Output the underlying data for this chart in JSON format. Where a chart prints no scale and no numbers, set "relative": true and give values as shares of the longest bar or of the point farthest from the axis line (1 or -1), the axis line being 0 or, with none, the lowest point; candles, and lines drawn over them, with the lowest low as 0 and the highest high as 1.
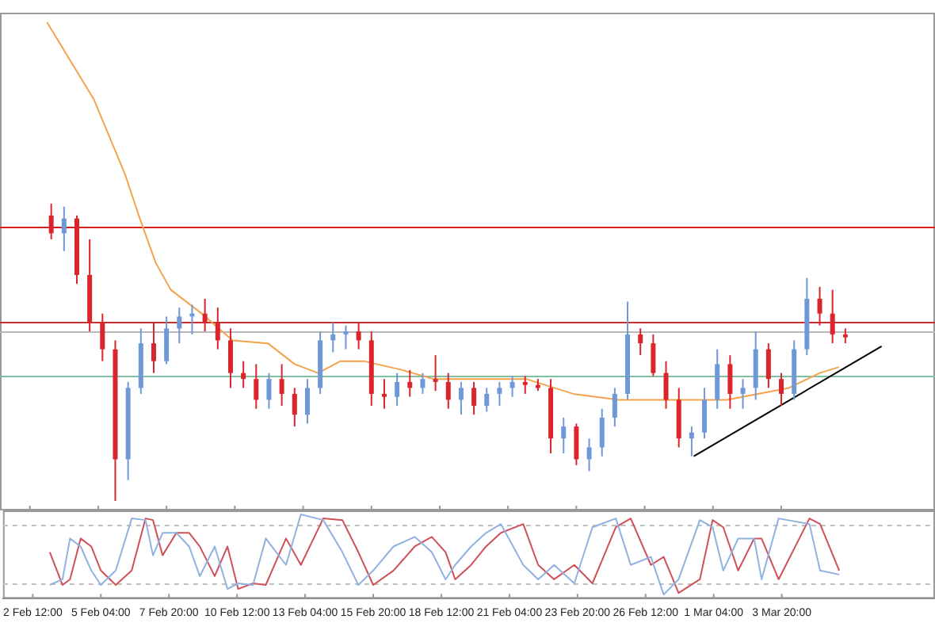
{
  "chart_data": [
    {
      "type": "candlestick",
      "relative": true,
      "xlim": [
        "--02-01T08:00",
        "--03-09T20:00"
      ],
      "tick_labels": false,
      "xticks": [
        {
          "value": "--02-02T12:00",
          "label": null
        },
        {
          "value": "--02-05T04:00",
          "label": null
        },
        {
          "value": "--02-07T20:00",
          "label": null
        },
        {
          "value": "--02-10T12:00",
          "label": null
        },
        {
          "value": "--02-13T04:00",
          "label": null
        },
        {
          "value": "--02-15T20:00",
          "label": null
        },
        {
          "value": "--02-18T12:00",
          "label": null
        },
        {
          "value": "--02-21T04:00",
          "label": null
        },
        {
          "value": "--02-23T20:00",
          "label": null
        },
        {
          "value": "--02-26T12:00",
          "label": null
        },
        {
          "value": "--03-01T04:00",
          "label": null
        },
        {
          "value": "--03-03T20:00",
          "label": null
        }
      ],
      "x": [
        "--02-03T08:00",
        "--02-03T20:00",
        "--02-04T08:00",
        "--02-04T20:00",
        "--02-05T08:00",
        "--02-05T20:00",
        "--02-06T08:00",
        "--02-06T20:00",
        "--02-07T08:00",
        "--02-07T20:00",
        "--02-08T08:00",
        "--02-08T20:00",
        "--02-09T08:00",
        "--02-09T20:00",
        "--02-10T08:00",
        "--02-10T20:00",
        "--02-11T08:00",
        "--02-11T20:00",
        "--02-12T08:00",
        "--02-12T20:00",
        "--02-13T08:00",
        "--02-13T20:00",
        "--02-14T08:00",
        "--02-14T20:00",
        "--02-15T08:00",
        "--02-15T20:00",
        "--02-16T08:00",
        "--02-16T20:00",
        "--02-17T08:00",
        "--02-17T20:00",
        "--02-18T08:00",
        "--02-18T20:00",
        "--02-19T08:00",
        "--02-19T20:00",
        "--02-20T08:00",
        "--02-20T20:00",
        "--02-21T08:00",
        "--02-21T20:00",
        "--02-22T08:00",
        "--02-22T20:00",
        "--02-23T08:00",
        "--02-23T20:00",
        "--02-24T08:00",
        "--02-24T20:00",
        "--02-25T08:00",
        "--02-25T20:00",
        "--02-26T08:00",
        "--02-26T20:00",
        "--02-27T08:00",
        "--02-27T20:00",
        "--02-28T08:00",
        "--02-28T20:00",
        "--03-01T08:00",
        "--03-01T20:00",
        "--03-02T08:00",
        "--03-02T20:00",
        "--03-03T08:00",
        "--03-03T20:00",
        "--03-04T08:00",
        "--03-04T20:00",
        "--03-05T08:00",
        "--03-05T20:00",
        "--03-06T08:00"
      ],
      "ohlc": [
        [
          0.96,
          1,
          0.88,
          0.9
        ],
        [
          0.9,
          0.99,
          0.84,
          0.95
        ],
        [
          0.95,
          0.96,
          0.73,
          0.76
        ],
        [
          0.76,
          0.88,
          0.57,
          0.6
        ],
        [
          0.6,
          0.63,
          0.47,
          0.51
        ],
        [
          0.51,
          0.54,
          0,
          0.14
        ],
        [
          0.14,
          0.4,
          0.07,
          0.38
        ],
        [
          0.38,
          0.58,
          0.36,
          0.53
        ],
        [
          0.53,
          0.6,
          0.43,
          0.47
        ],
        [
          0.47,
          0.62,
          0.46,
          0.58
        ],
        [
          0.58,
          0.65,
          0.53,
          0.62
        ],
        [
          0.62,
          0.66,
          0.56,
          0.63
        ],
        [
          0.63,
          0.68,
          0.57,
          0.6
        ],
        [
          0.6,
          0.65,
          0.51,
          0.54
        ],
        [
          0.54,
          0.58,
          0.38,
          0.43
        ],
        [
          0.43,
          0.47,
          0.38,
          0.41
        ],
        [
          0.41,
          0.46,
          0.31,
          0.34
        ],
        [
          0.34,
          0.43,
          0.31,
          0.41
        ],
        [
          0.41,
          0.46,
          0.32,
          0.36
        ],
        [
          0.36,
          0.38,
          0.25,
          0.29
        ],
        [
          0.29,
          0.41,
          0.26,
          0.38
        ],
        [
          0.38,
          0.57,
          0.36,
          0.54
        ],
        [
          0.54,
          0.6,
          0.5,
          0.56
        ],
        [
          0.56,
          0.59,
          0.51,
          0.57
        ],
        [
          0.57,
          0.6,
          0.51,
          0.54
        ],
        [
          0.54,
          0.57,
          0.32,
          0.36
        ],
        [
          0.36,
          0.41,
          0.31,
          0.35
        ],
        [
          0.35,
          0.43,
          0.32,
          0.4
        ],
        [
          0.4,
          0.44,
          0.35,
          0.38
        ],
        [
          0.38,
          0.43,
          0.36,
          0.41
        ],
        [
          0.41,
          0.49,
          0.37,
          0.4
        ],
        [
          0.4,
          0.43,
          0.31,
          0.34
        ],
        [
          0.34,
          0.4,
          0.29,
          0.38
        ],
        [
          0.38,
          0.4,
          0.29,
          0.32
        ],
        [
          0.32,
          0.38,
          0.3,
          0.36
        ],
        [
          0.36,
          0.4,
          0.32,
          0.38
        ],
        [
          0.38,
          0.42,
          0.35,
          0.4
        ],
        [
          0.4,
          0.42,
          0.36,
          0.39
        ],
        [
          0.39,
          0.41,
          0.37,
          0.38
        ],
        [
          0.38,
          0.41,
          0.16,
          0.21
        ],
        [
          0.21,
          0.28,
          0.16,
          0.25
        ],
        [
          0.25,
          0.26,
          0.12,
          0.14
        ],
        [
          0.14,
          0.21,
          0.1,
          0.18
        ],
        [
          0.18,
          0.31,
          0.15,
          0.28
        ],
        [
          0.28,
          0.38,
          0.25,
          0.36
        ],
        [
          0.36,
          0.67,
          0.34,
          0.56
        ],
        [
          0.56,
          0.58,
          0.49,
          0.53
        ],
        [
          0.53,
          0.56,
          0.42,
          0.43
        ],
        [
          0.43,
          0.47,
          0.31,
          0.34
        ],
        [
          0.34,
          0.38,
          0.18,
          0.21
        ],
        [
          0.21,
          0.25,
          0.15,
          0.23
        ],
        [
          0.23,
          0.38,
          0.21,
          0.34
        ],
        [
          0.34,
          0.51,
          0.31,
          0.46
        ],
        [
          0.46,
          0.49,
          0.31,
          0.36
        ],
        [
          0.36,
          0.41,
          0.31,
          0.38
        ],
        [
          0.38,
          0.57,
          0.34,
          0.51
        ],
        [
          0.51,
          0.53,
          0.38,
          0.41
        ],
        [
          0.41,
          0.43,
          0.32,
          0.36
        ],
        [
          0.36,
          0.54,
          0.34,
          0.51
        ],
        [
          0.51,
          0.75,
          0.49,
          0.68
        ],
        [
          0.68,
          0.72,
          0.59,
          0.63
        ],
        [
          0.63,
          0.71,
          0.53,
          0.56
        ],
        [
          0.56,
          0.58,
          0.53,
          0.55
        ]
      ],
      "series": [
        {
          "type": "line",
          "color": "#f4a34c",
          "x": [
            "--02-03T04:00",
            "--02-05T00:00",
            "--02-06T05:00",
            "--02-06T19:00",
            "--02-07T10:00",
            "--02-08T00:00",
            "--02-09T05:00",
            "--02-10T10:00",
            "--02-11T19:00",
            "--02-12T20:00",
            "--02-13T18:00",
            "--02-14T15:00",
            "--02-15T13:00",
            "--02-17T01:00",
            "--02-18T06:00",
            "--02-20T02:00",
            "--02-21T21:00",
            "--02-23T17:00",
            "--02-25T12:00",
            "--02-27T07:00",
            "--03-01T17:00",
            "--03-04T03:00",
            "--03-05T08:00",
            "--03-06T02:00"
          ],
          "values": [
            1.61,
            1.35,
            1.1,
            0.95,
            0.8,
            0.71,
            0.63,
            0.54,
            0.53,
            0.46,
            0.43,
            0.47,
            0.47,
            0.44,
            0.41,
            0.41,
            0.41,
            0.36,
            0.34,
            0.34,
            0.34,
            0.38,
            0.43,
            0.45
          ]
        },
        {
          "type": "line",
          "color": "#000000",
          "x": [
            "--02-28T10:00",
            "--03-07T18:00"
          ],
          "values": [
            0.15,
            0.52
          ]
        }
      ],
      "ref_lines": [
        {
          "axis": "y",
          "value": 0.92,
          "color": "#d62020"
        },
        {
          "axis": "y",
          "value": 0.6,
          "color": "#c83030"
        },
        {
          "axis": "y",
          "value": 0.57,
          "color": "#b8b8b8"
        },
        {
          "axis": "y",
          "value": 0.42,
          "color": "#80c0a0"
        }
      ]
    },
    {
      "type": "line",
      "relative": true,
      "xlim": [
        "--02-01T08:00",
        "--03-09T20:00"
      ],
      "tick_labels": "x",
      "xticks": [
        {
          "value": "--02-02T12:00",
          "label": "2 Feb 12:00"
        },
        {
          "value": "--02-05T04:00",
          "label": "5 Feb 04:00"
        },
        {
          "value": "--02-07T20:00",
          "label": "7 Feb 20:00"
        },
        {
          "value": "--02-10T12:00",
          "label": "10 Feb 12:00"
        },
        {
          "value": "--02-13T04:00",
          "label": "13 Feb 04:00"
        },
        {
          "value": "--02-15T20:00",
          "label": "15 Feb 20:00"
        },
        {
          "value": "--02-18T12:00",
          "label": "18 Feb 12:00"
        },
        {
          "value": "--02-21T04:00",
          "label": "21 Feb 04:00"
        },
        {
          "value": "--02-23T20:00",
          "label": "23 Feb 20:00"
        },
        {
          "value": "--02-26T12:00",
          "label": "26 Feb 12:00"
        },
        {
          "value": "--03-01T04:00",
          "label": "1 Mar 04:00"
        },
        {
          "value": "--03-03T20:00",
          "label": "3 Mar 20:00"
        }
      ],
      "x": [
        "--02-03T04:00",
        "--02-03T16:00",
        "--02-03T23:00",
        "--02-04T09:00",
        "--02-04T19:00",
        "--02-05T04:00",
        "--02-05T18:00",
        "--02-06T09:00",
        "--02-06T22:00",
        "--02-07T05:00",
        "--02-07T14:00",
        "--02-08T03:00",
        "--02-08T15:00",
        "--02-09T01:00",
        "--02-09T15:00",
        "--02-10T03:00",
        "--02-10T13:00",
        "--02-11T03:00",
        "--02-11T15:00",
        "--02-12T10:00",
        "--02-13T00:00",
        "--02-13T21:00",
        "--02-14T15:00",
        "--02-15T06:00",
        "--02-15T20:00",
        "--02-16T15:00",
        "--02-17T11:00",
        "--02-18T03:00",
        "--02-18T16:00",
        "--02-19T01:00",
        "--02-19T16:00",
        "--02-20T06:00",
        "--02-20T20:00",
        "--02-21T17:00",
        "--02-22T07:00",
        "--02-22T22:00",
        "--02-23T17:00",
        "--02-24T10:00",
        "--02-25T08:00",
        "--02-25T22:00",
        "--02-26T17:00",
        "--02-27T05:00",
        "--02-27T19:00",
        "--02-28T15:00",
        "--03-01T03:00",
        "--03-01T13:00",
        "--03-02T03:00",
        "--03-02T18:00",
        "--03-03T01:00",
        "--03-03T17:00",
        "--03-04T22:00",
        "--03-05T08:00",
        "--03-06T02:00"
      ],
      "series": [
        {
          "color": "#8fb2e0",
          "values": [
            0.12,
            0.19,
            0.7,
            0.6,
            0.3,
            0.12,
            0.3,
            0.95,
            0.93,
            0.49,
            0.77,
            0.77,
            0.6,
            0.23,
            0.6,
            0.07,
            0.14,
            0.12,
            0.7,
            0.37,
            1,
            0.93,
            0.53,
            0.12,
            0.3,
            0.6,
            0.72,
            0.53,
            0.19,
            0.37,
            0.6,
            0.77,
            0.88,
            0.37,
            0.19,
            0.37,
            0.14,
            0.84,
            0.95,
            0.37,
            0.47,
            0,
            0.19,
            0.93,
            0.84,
            0.3,
            0.7,
            0.7,
            0.19,
            0.95,
            0.88,
            0.3,
            0.25
          ]
        },
        {
          "color": "#d0505a",
          "values": [
            0.53,
            0.12,
            0.19,
            0.7,
            0.6,
            0.3,
            0.12,
            0.3,
            0.95,
            0.93,
            0.49,
            0.77,
            0.77,
            0.6,
            0.23,
            0.6,
            0.07,
            0.14,
            0.12,
            0.7,
            0.37,
            0.95,
            0.93,
            0.53,
            0.12,
            0.3,
            0.6,
            0.72,
            0.53,
            0.19,
            0.37,
            0.6,
            0.77,
            0.88,
            0.37,
            0.19,
            0.37,
            0.14,
            0.84,
            0.95,
            0.37,
            0.47,
            0.02,
            0.19,
            0.93,
            0.84,
            0.3,
            0.7,
            0.7,
            0.19,
            0.95,
            0.88,
            0.3
          ]
        }
      ],
      "ref_lines": [
        {
          "axis": "y",
          "value": 0.88,
          "color": "#c0c0c0",
          "line_style": "dashed"
        },
        {
          "axis": "y",
          "value": 0.14,
          "color": "#c0c0c0",
          "line_style": "dashed"
        }
      ]
    }
  ]
}
